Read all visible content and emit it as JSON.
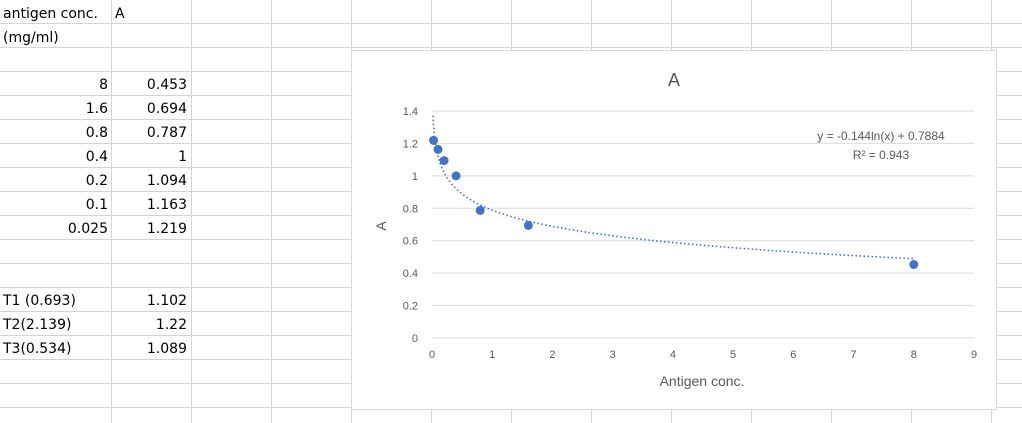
{
  "sheet": {
    "header_a": "antigen conc.",
    "header_a2": "(mg/ml)",
    "header_b": "A",
    "rows": [
      {
        "conc": "8",
        "a": "0.453"
      },
      {
        "conc": "1.6",
        "a": "0.694"
      },
      {
        "conc": "0.8",
        "a": "0.787"
      },
      {
        "conc": "0.4",
        "a": "1"
      },
      {
        "conc": "0.2",
        "a": "1.094"
      },
      {
        "conc": "0.1",
        "a": "1.163"
      },
      {
        "conc": "0.025",
        "a": "1.219"
      }
    ],
    "tests": [
      {
        "label": "T1 (0.693)",
        "a": "1.102"
      },
      {
        "label": "T2(2.139)",
        "a": "1.22"
      },
      {
        "label": "T3(0.534)",
        "a": "1.089"
      }
    ]
  },
  "chart_data": {
    "type": "scatter",
    "title": "A",
    "xlabel": "Antigen conc.",
    "ylabel": "A",
    "xlim": [
      0,
      9
    ],
    "ylim": [
      0,
      1.4
    ],
    "xticks": [
      "0",
      "1",
      "2",
      "3",
      "4",
      "5",
      "6",
      "7",
      "8",
      "9"
    ],
    "yticks": [
      "0",
      "0.2",
      "0.4",
      "0.6",
      "0.8",
      "1",
      "1.2",
      "1.4"
    ],
    "grid": true,
    "points": [
      {
        "x": 8,
        "y": 0.453
      },
      {
        "x": 1.6,
        "y": 0.694
      },
      {
        "x": 0.8,
        "y": 0.787
      },
      {
        "x": 0.4,
        "y": 1
      },
      {
        "x": 0.2,
        "y": 1.094
      },
      {
        "x": 0.1,
        "y": 1.163
      },
      {
        "x": 0.025,
        "y": 1.219
      }
    ],
    "trendline": {
      "type": "log",
      "a": -0.144,
      "b": 0.7884
    },
    "equation": "y = -0.144ln(x) + 0.7884",
    "r_squared": "R² = 0.943",
    "colors": {
      "marker": "#4472c4",
      "trendline": "#4472c4",
      "grid": "#d9d9d9",
      "text": "#595959"
    }
  }
}
